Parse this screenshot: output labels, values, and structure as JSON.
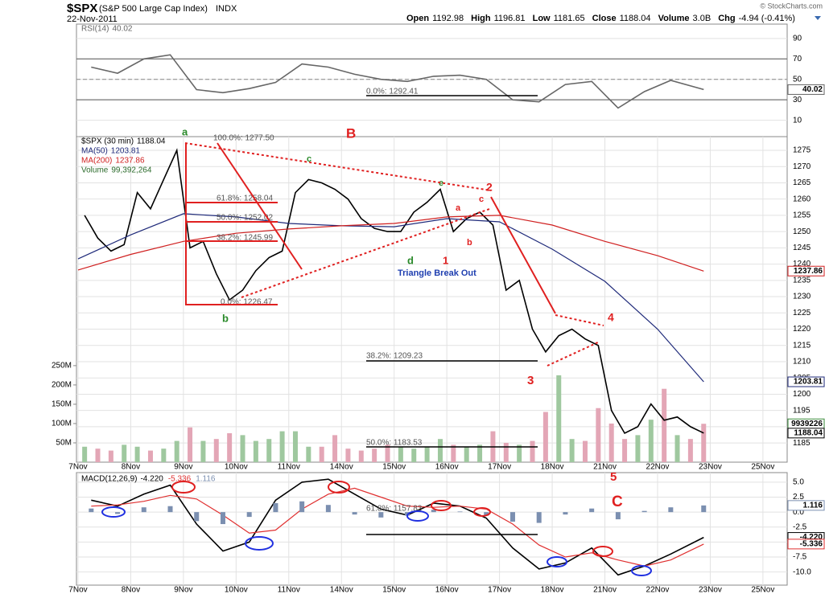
{
  "header": {
    "symbol": "$SPX",
    "name": "(S&P 500 Large Cap Index)",
    "exchange": "INDX",
    "date": "22-Nov-2011",
    "copyright": "© StockCharts.com",
    "quote": [
      {
        "label": "Open",
        "value": "1192.98"
      },
      {
        "label": "High",
        "value": "1196.81"
      },
      {
        "label": "Low",
        "value": "1181.65"
      },
      {
        "label": "Close",
        "value": "1188.04"
      },
      {
        "label": "Volume",
        "value": "3.0B"
      },
      {
        "label": "Chg",
        "value": "-4.94 (-0.41%)"
      }
    ]
  },
  "chart_data": [
    {
      "type": "line",
      "xlim": [
        -0.03,
        13.46
      ],
      "ylim": [
        -6,
        104
      ],
      "yticks": [
        10,
        30,
        50,
        70,
        90
      ],
      "grid": true,
      "ref_lines": [
        30,
        70
      ],
      "dashed_ref": 50,
      "series": [
        {
          "name": "RSI(14)",
          "value_label": "40.02",
          "color": "#666666",
          "x": [
            0.25,
            0.75,
            1.25,
            1.75,
            2.25,
            2.75,
            3.25,
            3.75,
            4.25,
            4.75,
            5.25,
            5.75,
            6.25,
            6.75,
            7.25,
            7.75,
            8.25,
            8.75,
            9.25,
            9.75,
            10.25,
            10.75,
            11.25,
            11.875
          ],
          "values": [
            62,
            56,
            70,
            74,
            40,
            37,
            41,
            47,
            65,
            62,
            55,
            50,
            48,
            53,
            54,
            50,
            30,
            28,
            45,
            48,
            22,
            38,
            49,
            40.02
          ]
        }
      ],
      "annotations": [
        {
          "text": "0.0%: 1292.41",
          "color": "#555555"
        }
      ]
    },
    {
      "type": "line",
      "xlim": [
        -0.03,
        13.46
      ],
      "ylim": [
        1179.1,
        1279.2
      ],
      "grid": true,
      "yticks": [
        1185,
        1190,
        1195,
        1200,
        1205,
        1210,
        1215,
        1220,
        1225,
        1230,
        1235,
        1240,
        1245,
        1250,
        1255,
        1260,
        1265,
        1270,
        1275
      ],
      "xticks": [
        {
          "value": 0,
          "label": "7Nov"
        },
        {
          "value": 1,
          "label": "8Nov"
        },
        {
          "value": 2,
          "label": "9Nov"
        },
        {
          "value": 3,
          "label": "10Nov"
        },
        {
          "value": 4,
          "label": "11Nov"
        },
        {
          "value": 5,
          "label": "14Nov"
        },
        {
          "value": 6,
          "label": "15Nov"
        },
        {
          "value": 7,
          "label": "16Nov"
        },
        {
          "value": 8,
          "label": "17Nov"
        },
        {
          "value": 9,
          "label": "18Nov"
        },
        {
          "value": 10,
          "label": "21Nov"
        },
        {
          "value": 11,
          "label": "22Nov"
        },
        {
          "value": 12,
          "label": "23Nov"
        },
        {
          "value": 13,
          "label": "25Nov"
        }
      ],
      "series": [
        {
          "name": "$SPX (30 min)",
          "value_label": "1188.04",
          "color": "#000000",
          "x": [
            0.125,
            0.375,
            0.625,
            0.875,
            1.125,
            1.375,
            1.625,
            1.875,
            2.125,
            2.375,
            2.625,
            2.875,
            3.125,
            3.375,
            3.625,
            3.875,
            4.125,
            4.375,
            4.625,
            4.875,
            5.125,
            5.375,
            5.625,
            5.875,
            6.125,
            6.375,
            6.625,
            6.875,
            7.125,
            7.375,
            7.625,
            7.875,
            8.125,
            8.375,
            8.625,
            8.875,
            9.125,
            9.375,
            9.625,
            9.875,
            10.125,
            10.375,
            10.625,
            10.875,
            11.125,
            11.375,
            11.625,
            11.875
          ],
          "values": [
            1255,
            1248,
            1244,
            1246,
            1262,
            1257,
            1266,
            1275,
            1245,
            1247,
            1237,
            1229,
            1232,
            1238,
            1242,
            1244,
            1262,
            1266,
            1265,
            1263,
            1260,
            1254,
            1251,
            1250,
            1250,
            1256,
            1259,
            1263,
            1250,
            1254,
            1256,
            1252,
            1232,
            1235,
            1220,
            1213,
            1218,
            1220,
            1217,
            1215,
            1195,
            1188,
            1190,
            1197,
            1192,
            1193,
            1190,
            1188.04
          ]
        },
        {
          "name": "MA(50)",
          "value_label": "1203.81",
          "color": "#1f2a7a",
          "x": [
            0,
            1,
            2,
            3,
            4,
            5,
            6,
            7,
            8,
            9,
            10,
            11,
            11.875
          ],
          "values": [
            1241.6,
            1249,
            1255.5,
            1254.5,
            1252.5,
            1251.8,
            1251.5,
            1254,
            1253,
            1244.6,
            1234.7,
            1220,
            1203.81
          ]
        },
        {
          "name": "MA(200)",
          "value_label": "1237.86",
          "color": "#d02020",
          "x": [
            0,
            1,
            2,
            3,
            4,
            5,
            6,
            7,
            8,
            9,
            10,
            11,
            11.875
          ],
          "values": [
            1238.2,
            1243,
            1247,
            1249.5,
            1250.8,
            1251.8,
            1252.5,
            1254.5,
            1255,
            1252,
            1247,
            1242.6,
            1237.86
          ]
        }
      ],
      "volume": {
        "name": "Volume",
        "value_label": "99,392,264",
        "box_label": "9939226",
        "up_color": "#9fc89f",
        "down_color": "#e3a6b6",
        "ylim": [
          0,
          843
        ],
        "yticks": [
          {
            "value": 50,
            "label": "50M"
          },
          {
            "value": 100,
            "label": "100M"
          },
          {
            "value": 150,
            "label": "150M"
          },
          {
            "value": 200,
            "label": "200M"
          },
          {
            "value": 250,
            "label": "250M"
          }
        ],
        "values": [
          40,
          35,
          30,
          45,
          40,
          30,
          35,
          55,
          90,
          55,
          60,
          75,
          70,
          55,
          60,
          80,
          80,
          40,
          40,
          70,
          35,
          30,
          35,
          45,
          40,
          35,
          40,
          60,
          45,
          40,
          45,
          80,
          50,
          45,
          55,
          130,
          225,
          60,
          55,
          140,
          100,
          60,
          70,
          110,
          190,
          70,
          60,
          99.39
        ]
      },
      "annotations": [
        {
          "text": "a",
          "color": "#2a8a2a"
        },
        {
          "text": "B",
          "color": "#e02020"
        },
        {
          "text": "c",
          "color": "#2a8a2a"
        },
        {
          "text": "e",
          "color": "#2a8a2a"
        },
        {
          "text": "2",
          "color": "#e02020"
        },
        {
          "text": "c",
          "color": "#e02020"
        },
        {
          "text": "a",
          "color": "#e02020"
        },
        {
          "text": "b",
          "color": "#e02020"
        },
        {
          "text": "d",
          "color": "#2a8a2a"
        },
        {
          "text": "1",
          "color": "#e02020"
        },
        {
          "text": "Triangle Break Out",
          "color": "#1f3fb0"
        },
        {
          "text": "b",
          "color": "#2a8a2a"
        },
        {
          "text": "4",
          "color": "#e02020"
        },
        {
          "text": "3",
          "color": "#e02020"
        },
        {
          "text": "100.0%: 1277.50",
          "color": "#555555"
        },
        {
          "text": "61.8%: 1258.04",
          "color": "#555555"
        },
        {
          "text": "50.0%: 1252.02",
          "color": "#555555"
        },
        {
          "text": "38.2%: 1245.99",
          "color": "#555555"
        },
        {
          "text": "0.0%: 1226.47",
          "color": "#555555"
        },
        {
          "text": "38.2%: 1209.23",
          "color": "#555555"
        },
        {
          "text": "50.0%: 1183.53",
          "color": "#555555"
        }
      ]
    },
    {
      "type": "macd",
      "xlim": [
        -0.03,
        13.46
      ],
      "ylim": [
        -12.2,
        6.6
      ],
      "grid": true,
      "yticks": [
        {
          "value": 5,
          "label": "5.0"
        },
        2.5,
        {
          "value": 0,
          "label": "0.0"
        },
        -2.5,
        {
          "value": -5,
          "label": "-5.0"
        },
        -7.5,
        {
          "value": -10,
          "label": "-10.0"
        }
      ],
      "xticks": [
        {
          "value": 0,
          "label": "7Nov"
        },
        {
          "value": 1,
          "label": "8Nov"
        },
        {
          "value": 2,
          "label": "9Nov"
        },
        {
          "value": 3,
          "label": "10Nov"
        },
        {
          "value": 4,
          "label": "11Nov"
        },
        {
          "value": 5,
          "label": "14Nov"
        },
        {
          "value": 6,
          "label": "15Nov"
        },
        {
          "value": 7,
          "label": "16Nov"
        },
        {
          "value": 8,
          "label": "17Nov"
        },
        {
          "value": 9,
          "label": "18Nov"
        },
        {
          "value": 10,
          "label": "21Nov"
        },
        {
          "value": 11,
          "label": "22Nov"
        },
        {
          "value": 12,
          "label": "23Nov"
        },
        {
          "value": 13,
          "label": "25Nov"
        }
      ],
      "series": [
        {
          "name": "MACD(12,26,9)",
          "value_label": "-4.220",
          "color": "#000000",
          "x": [
            0.25,
            0.75,
            1.25,
            1.75,
            2.25,
            2.75,
            3.25,
            3.75,
            4.25,
            4.75,
            5.25,
            5.75,
            6.25,
            6.75,
            7.25,
            7.75,
            8.25,
            8.75,
            9.25,
            9.75,
            10.25,
            10.75,
            11.25,
            11.875
          ],
          "values": [
            2,
            1,
            3,
            4.5,
            -2,
            -6.5,
            -5,
            2,
            5,
            5.5,
            3,
            0.5,
            -0.5,
            1.5,
            1,
            -1,
            -6,
            -9.5,
            -8.5,
            -6,
            -10.5,
            -9,
            -7,
            -4.22
          ]
        },
        {
          "value_label": "-5.336",
          "color": "#e03030",
          "x": [
            0.25,
            0.75,
            1.25,
            1.75,
            2.25,
            2.75,
            3.25,
            3.75,
            4.25,
            4.75,
            5.25,
            5.75,
            6.25,
            6.75,
            7.25,
            7.75,
            8.25,
            8.75,
            9.25,
            9.75,
            10.25,
            10.75,
            11.25,
            11.875
          ],
          "values": [
            1,
            1.2,
            1.8,
            2.8,
            2.2,
            -0.5,
            -3.5,
            -3,
            0.5,
            3,
            4,
            2.5,
            1,
            0.8,
            1,
            0.5,
            -2,
            -5.5,
            -7.5,
            -6.8,
            -8,
            -9,
            -8,
            -5.336
          ]
        },
        {
          "type": "bar",
          "value_label": "1.116",
          "color": "#7b8fb0",
          "x": [
            0.25,
            0.75,
            1.25,
            1.75,
            2.25,
            2.75,
            3.25,
            3.75,
            4.25,
            4.75,
            5.25,
            5.75,
            6.25,
            6.75,
            7.25,
            7.75,
            8.25,
            8.75,
            9.25,
            9.75,
            10.25,
            10.75,
            11.25,
            11.875
          ],
          "values": [
            0.6,
            -0.3,
            0.8,
            1,
            -1.5,
            -2,
            -0.8,
            1.5,
            1.8,
            1.2,
            -0.4,
            -0.9,
            -0.6,
            0.4,
            0.1,
            -0.6,
            -1.6,
            -1.8,
            -0.4,
            0.6,
            -1.2,
            0.2,
            0.8,
            1.116
          ]
        }
      ],
      "annotations": [
        {
          "text": "5",
          "color": "#e02020"
        },
        {
          "text": "C",
          "color": "#e02020"
        },
        {
          "text": "61.8%: 1157.83",
          "color": "#555555"
        }
      ]
    }
  ]
}
